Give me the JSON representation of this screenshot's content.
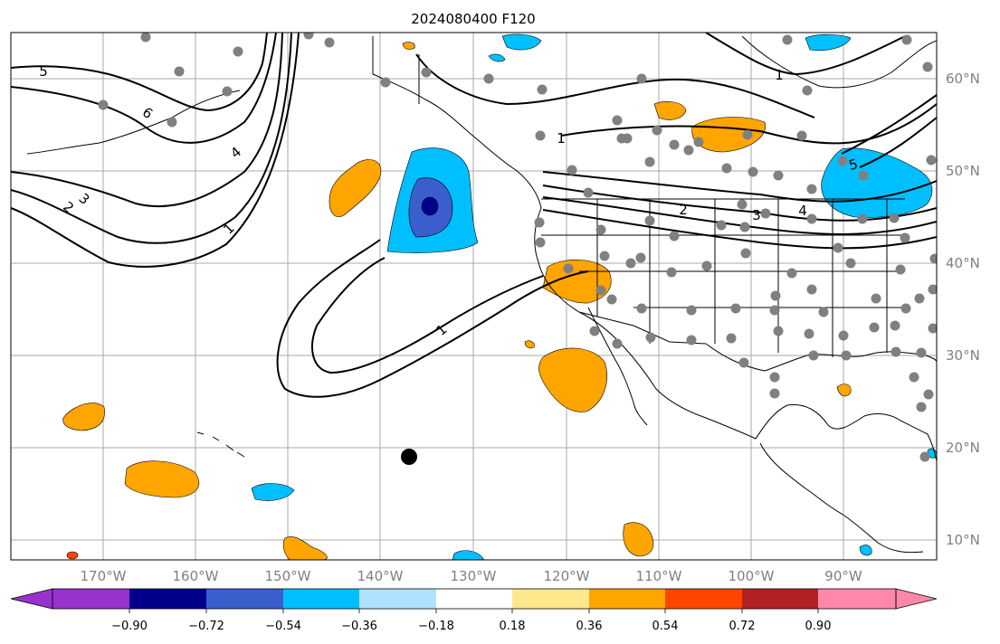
{
  "title": "2024080400 F120",
  "colors": {
    "grid": "#a9a9a9",
    "coast": "#000000",
    "contour": "#000000",
    "station": "#808080",
    "marker": "#000000",
    "pos_036": "#ffa500",
    "neg_036": "#00bfff",
    "neg_054": "#3a5fcd",
    "neg_072": "#00008b"
  },
  "lat_labels": [
    "60°N",
    "50°N",
    "40°N",
    "30°N",
    "20°N",
    "10°N"
  ],
  "lon_labels": [
    "170°W",
    "160°W",
    "150°W",
    "140°W",
    "130°W",
    "120°W",
    "110°W",
    "100°W",
    "90°W"
  ],
  "contour_labels": [
    "5",
    "6",
    "4",
    "3",
    "2",
    "1",
    "1",
    "1",
    "5",
    "4",
    "3",
    "2",
    "1"
  ],
  "colorbar": {
    "ticks": [
      "−0.90",
      "−0.72",
      "−0.54",
      "−0.36",
      "−0.18",
      "0.18",
      "0.36",
      "0.54",
      "0.72",
      "0.90"
    ],
    "colors": [
      "#9932cc",
      "#00008b",
      "#3a5fcd",
      "#00bfff",
      "#b0e2ff",
      "#ffffff",
      "#ffe78c",
      "#ffa500",
      "#ff4500",
      "#b22222",
      "#ff88aa",
      "#ff88aa"
    ]
  }
}
